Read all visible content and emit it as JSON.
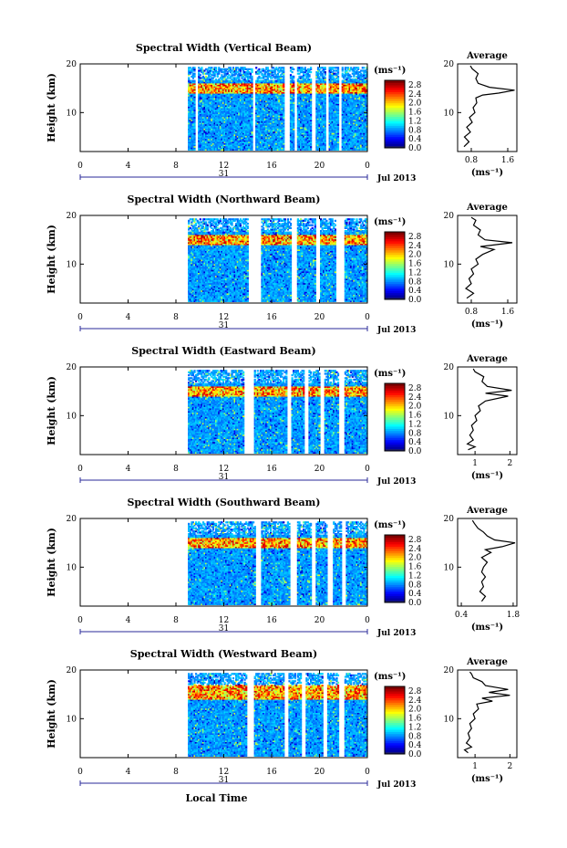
{
  "chart_data": [
    {
      "type": "heatmap",
      "title": "Spectral Width (Vertical Beam)",
      "ylabel": "Height (km)",
      "ylim": [
        2,
        20
      ],
      "xlim": [
        0,
        24
      ],
      "x_ticks": [
        "0",
        "4",
        "8",
        "12",
        "16",
        "20",
        "0"
      ],
      "y_ticks": [
        "10",
        "20"
      ],
      "date_label": "31",
      "month_label": "Jul 2013",
      "colorbar": {
        "unit": "(ms⁻¹)",
        "ticks": [
          "0.0",
          "0.4",
          "0.8",
          "1.2",
          "1.6",
          "2.0",
          "2.4",
          "2.8"
        ],
        "range": [
          0,
          3.0
        ]
      },
      "data_gaps_hours": [
        [
          0,
          9.0
        ],
        [
          9.5,
          9.8
        ],
        [
          14.3,
          14.6
        ],
        [
          17.0,
          17.4
        ],
        [
          17.8,
          18.1
        ],
        [
          19.2,
          19.6
        ],
        [
          20.4,
          20.7
        ],
        [
          21.5,
          21.8
        ]
      ],
      "high_layer_km": [
        14,
        16
      ],
      "average": {
        "title": "Average",
        "xlabel": "(ms⁻¹)",
        "x_ticks": [
          "0.8",
          "1.6"
        ],
        "xlim": [
          0.5,
          1.8
        ],
        "profile": [
          [
            0.64,
            3
          ],
          [
            0.75,
            4
          ],
          [
            0.65,
            5
          ],
          [
            0.78,
            6
          ],
          [
            0.7,
            7
          ],
          [
            0.82,
            8
          ],
          [
            0.76,
            9
          ],
          [
            0.88,
            10
          ],
          [
            0.84,
            11
          ],
          [
            0.92,
            12
          ],
          [
            0.9,
            13
          ],
          [
            1.05,
            13.6
          ],
          [
            1.4,
            14
          ],
          [
            1.75,
            14.6
          ],
          [
            1.2,
            15.2
          ],
          [
            0.95,
            16
          ],
          [
            0.9,
            17
          ],
          [
            0.95,
            18
          ],
          [
            0.82,
            19
          ],
          [
            0.78,
            19.6
          ]
        ]
      }
    },
    {
      "type": "heatmap",
      "title": "Spectral Width (Northward Beam)",
      "ylabel": "Height (km)",
      "ylim": [
        2,
        20
      ],
      "xlim": [
        0,
        24
      ],
      "x_ticks": [
        "0",
        "4",
        "8",
        "12",
        "16",
        "20",
        "0"
      ],
      "y_ticks": [
        "10",
        "20"
      ],
      "date_label": "31",
      "month_label": "Jul 2013",
      "colorbar": {
        "unit": "(ms⁻¹)",
        "ticks": [
          "0.0",
          "0.4",
          "0.8",
          "1.2",
          "1.6",
          "2.0",
          "2.4",
          "2.8"
        ],
        "range": [
          0,
          3.0
        ]
      },
      "data_gaps_hours": [
        [
          0,
          9.0
        ],
        [
          14.0,
          15.0
        ],
        [
          17.6,
          18.0
        ],
        [
          19.6,
          20.0
        ],
        [
          21.3,
          22.0
        ]
      ],
      "high_layer_km": [
        14,
        16
      ],
      "average": {
        "title": "Average",
        "xlabel": "(ms⁻¹)",
        "x_ticks": [
          "0.8",
          "1.6"
        ],
        "xlim": [
          0.5,
          1.8
        ],
        "profile": [
          [
            0.7,
            3
          ],
          [
            0.85,
            4
          ],
          [
            0.68,
            5
          ],
          [
            0.8,
            6
          ],
          [
            0.75,
            7
          ],
          [
            0.85,
            8
          ],
          [
            0.8,
            9
          ],
          [
            0.95,
            10
          ],
          [
            0.9,
            11
          ],
          [
            1.05,
            12
          ],
          [
            1.3,
            13
          ],
          [
            1.0,
            13.6
          ],
          [
            1.7,
            14.4
          ],
          [
            1.1,
            15
          ],
          [
            0.95,
            16
          ],
          [
            1.0,
            17
          ],
          [
            0.85,
            18
          ],
          [
            0.9,
            19
          ],
          [
            0.8,
            19.6
          ]
        ]
      }
    },
    {
      "type": "heatmap",
      "title": "Spectral Width (Eastward Beam)",
      "ylabel": "Height (km)",
      "ylim": [
        2,
        20
      ],
      "xlim": [
        0,
        24
      ],
      "x_ticks": [
        "0",
        "4",
        "8",
        "12",
        "16",
        "20",
        "0"
      ],
      "y_ticks": [
        "10",
        "20"
      ],
      "date_label": "31",
      "month_label": "Jul 2013",
      "colorbar": {
        "unit": "(ms⁻¹)",
        "ticks": [
          "0.0",
          "0.4",
          "0.8",
          "1.2",
          "1.6",
          "2.0",
          "2.4",
          "2.8"
        ],
        "range": [
          0,
          3.0
        ]
      },
      "data_gaps_hours": [
        [
          0,
          9.0
        ],
        [
          13.6,
          14.4
        ],
        [
          17.2,
          17.6
        ],
        [
          18.6,
          19.0
        ],
        [
          20.0,
          20.3
        ],
        [
          21.6,
          22.0
        ]
      ],
      "high_layer_km": [
        14,
        16
      ],
      "average": {
        "title": "Average",
        "xlabel": "(ms⁻¹)",
        "x_ticks": [
          "1",
          "2"
        ],
        "xlim": [
          0.5,
          2.2
        ],
        "profile": [
          [
            0.8,
            3
          ],
          [
            1.0,
            3.6
          ],
          [
            0.78,
            4.2
          ],
          [
            0.95,
            5
          ],
          [
            0.85,
            6
          ],
          [
            0.95,
            7
          ],
          [
            0.9,
            8
          ],
          [
            1.05,
            9
          ],
          [
            1.0,
            10
          ],
          [
            1.15,
            11
          ],
          [
            1.1,
            12
          ],
          [
            1.3,
            13
          ],
          [
            1.95,
            14
          ],
          [
            1.3,
            14.6
          ],
          [
            2.05,
            15.2
          ],
          [
            1.35,
            16
          ],
          [
            1.2,
            17
          ],
          [
            1.25,
            18
          ],
          [
            1.0,
            19
          ],
          [
            0.95,
            19.6
          ]
        ]
      }
    },
    {
      "type": "heatmap",
      "title": "Spectral Width (Southward Beam)",
      "ylabel": "Height (km)",
      "ylim": [
        2,
        20
      ],
      "xlim": [
        0,
        24
      ],
      "x_ticks": [
        "0",
        "4",
        "8",
        "12",
        "16",
        "20",
        "0"
      ],
      "y_ticks": [
        "10",
        "20"
      ],
      "date_label": "31",
      "month_label": "Jul 2013",
      "colorbar": {
        "unit": "(ms⁻¹)",
        "ticks": [
          "0.0",
          "0.4",
          "0.8",
          "1.2",
          "1.6",
          "2.0",
          "2.4",
          "2.8"
        ],
        "range": [
          0,
          3.0
        ]
      },
      "data_gaps_hours": [
        [
          0,
          9.0
        ],
        [
          14.6,
          15.0
        ],
        [
          17.4,
          18.0
        ],
        [
          19.2,
          19.6
        ],
        [
          20.6,
          21.0
        ],
        [
          21.8,
          22.2
        ]
      ],
      "high_layer_km": [
        14,
        16
      ],
      "average": {
        "title": "Average",
        "xlabel": "(ms⁻¹)",
        "x_ticks": [
          "0.4",
          "1.8"
        ],
        "xlim": [
          0.3,
          1.9
        ],
        "profile": [
          [
            0.95,
            3
          ],
          [
            1.05,
            4
          ],
          [
            0.9,
            5
          ],
          [
            1.0,
            6
          ],
          [
            0.95,
            7
          ],
          [
            1.05,
            8
          ],
          [
            0.95,
            9
          ],
          [
            1.0,
            10
          ],
          [
            1.1,
            11
          ],
          [
            0.95,
            12
          ],
          [
            1.2,
            13
          ],
          [
            1.05,
            13.6
          ],
          [
            1.5,
            14.2
          ],
          [
            1.85,
            15
          ],
          [
            1.3,
            15.6
          ],
          [
            1.1,
            16.4
          ],
          [
            1.0,
            17.2
          ],
          [
            0.85,
            18
          ],
          [
            0.75,
            19
          ],
          [
            0.7,
            19.6
          ]
        ]
      }
    },
    {
      "type": "heatmap",
      "title": "Spectral Width (Westward Beam)",
      "ylabel": "Height (km)",
      "ylim": [
        2,
        20
      ],
      "xlim": [
        0,
        24
      ],
      "x_ticks": [
        "0",
        "4",
        "8",
        "12",
        "16",
        "20",
        "0"
      ],
      "y_ticks": [
        "10",
        "20"
      ],
      "date_label": "31",
      "month_label": "Jul 2013",
      "xlabel": "Local Time",
      "colorbar": {
        "unit": "(ms⁻¹)",
        "ticks": [
          "0.0",
          "0.4",
          "0.8",
          "1.2",
          "1.6",
          "2.0",
          "2.4",
          "2.8"
        ],
        "range": [
          0,
          3.0
        ]
      },
      "data_gaps_hours": [
        [
          0,
          9.0
        ],
        [
          13.8,
          14.4
        ],
        [
          17.0,
          17.3
        ],
        [
          18.4,
          18.8
        ],
        [
          20.2,
          20.6
        ],
        [
          21.6,
          22.0
        ]
      ],
      "high_layer_km": [
        14,
        17
      ],
      "average": {
        "title": "Average",
        "xlabel": "(ms⁻¹)",
        "x_ticks": [
          "1",
          "2"
        ],
        "xlim": [
          0.5,
          2.2
        ],
        "profile": [
          [
            0.8,
            3
          ],
          [
            0.7,
            3.6
          ],
          [
            0.9,
            4.2
          ],
          [
            0.75,
            5
          ],
          [
            0.85,
            6
          ],
          [
            0.8,
            7
          ],
          [
            0.9,
            8
          ],
          [
            0.85,
            9
          ],
          [
            1.0,
            10
          ],
          [
            0.95,
            11
          ],
          [
            1.1,
            12
          ],
          [
            1.05,
            13
          ],
          [
            1.5,
            13.6
          ],
          [
            1.2,
            14.2
          ],
          [
            2.0,
            14.8
          ],
          [
            1.4,
            15.4
          ],
          [
            1.95,
            16
          ],
          [
            1.3,
            16.8
          ],
          [
            1.2,
            17.6
          ],
          [
            0.95,
            18.4
          ],
          [
            0.9,
            19.2
          ],
          [
            0.85,
            19.6
          ]
        ]
      }
    }
  ]
}
